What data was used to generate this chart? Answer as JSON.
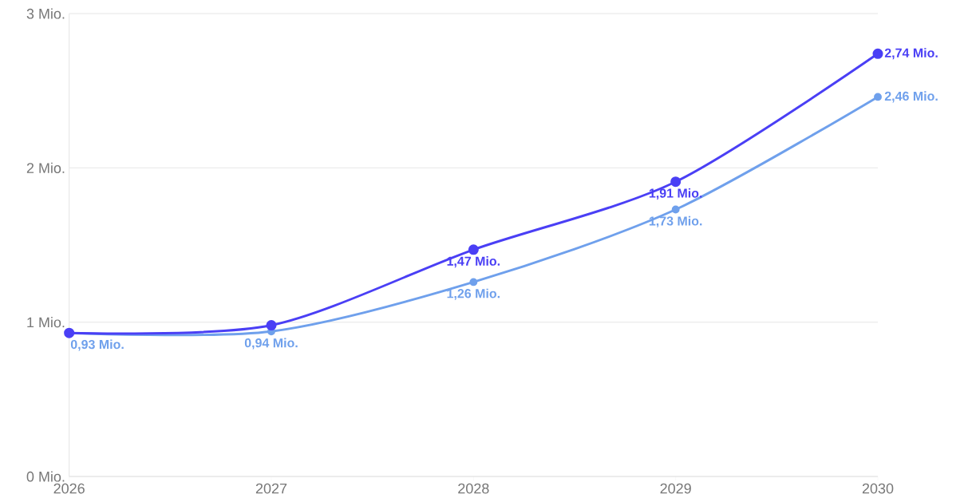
{
  "chart_data": {
    "type": "line",
    "x": [
      2026,
      2027,
      2028,
      2029,
      2030
    ],
    "series": [
      {
        "color": "#4a3ff5",
        "values": [
          0.93,
          0.98,
          1.47,
          1.91,
          2.74
        ],
        "value_labels": [
          null,
          null,
          "1,47 Mio.",
          "1,91 Mio.",
          "2,74 Mio."
        ]
      },
      {
        "color": "#6fa0ec",
        "values": [
          0.93,
          0.94,
          1.26,
          1.73,
          2.46
        ],
        "value_labels": [
          "0,93 Mio.",
          "0,94 Mio.",
          "1,26 Mio.",
          "1,73 Mio.",
          "2,46 Mio."
        ]
      }
    ],
    "xlim": [
      2026,
      2030
    ],
    "xticks": [
      2026,
      2027,
      2028,
      2029,
      2030
    ],
    "ylim": [
      0,
      3
    ],
    "yticks": [
      {
        "value": 0,
        "label": "0 Mio."
      },
      {
        "value": 1,
        "label": "1 Mio."
      },
      {
        "value": 2,
        "label": "2 Mio."
      },
      {
        "value": 3,
        "label": "3 Mio."
      }
    ],
    "grid": "y",
    "marker": "circle",
    "line_style": "solid"
  }
}
